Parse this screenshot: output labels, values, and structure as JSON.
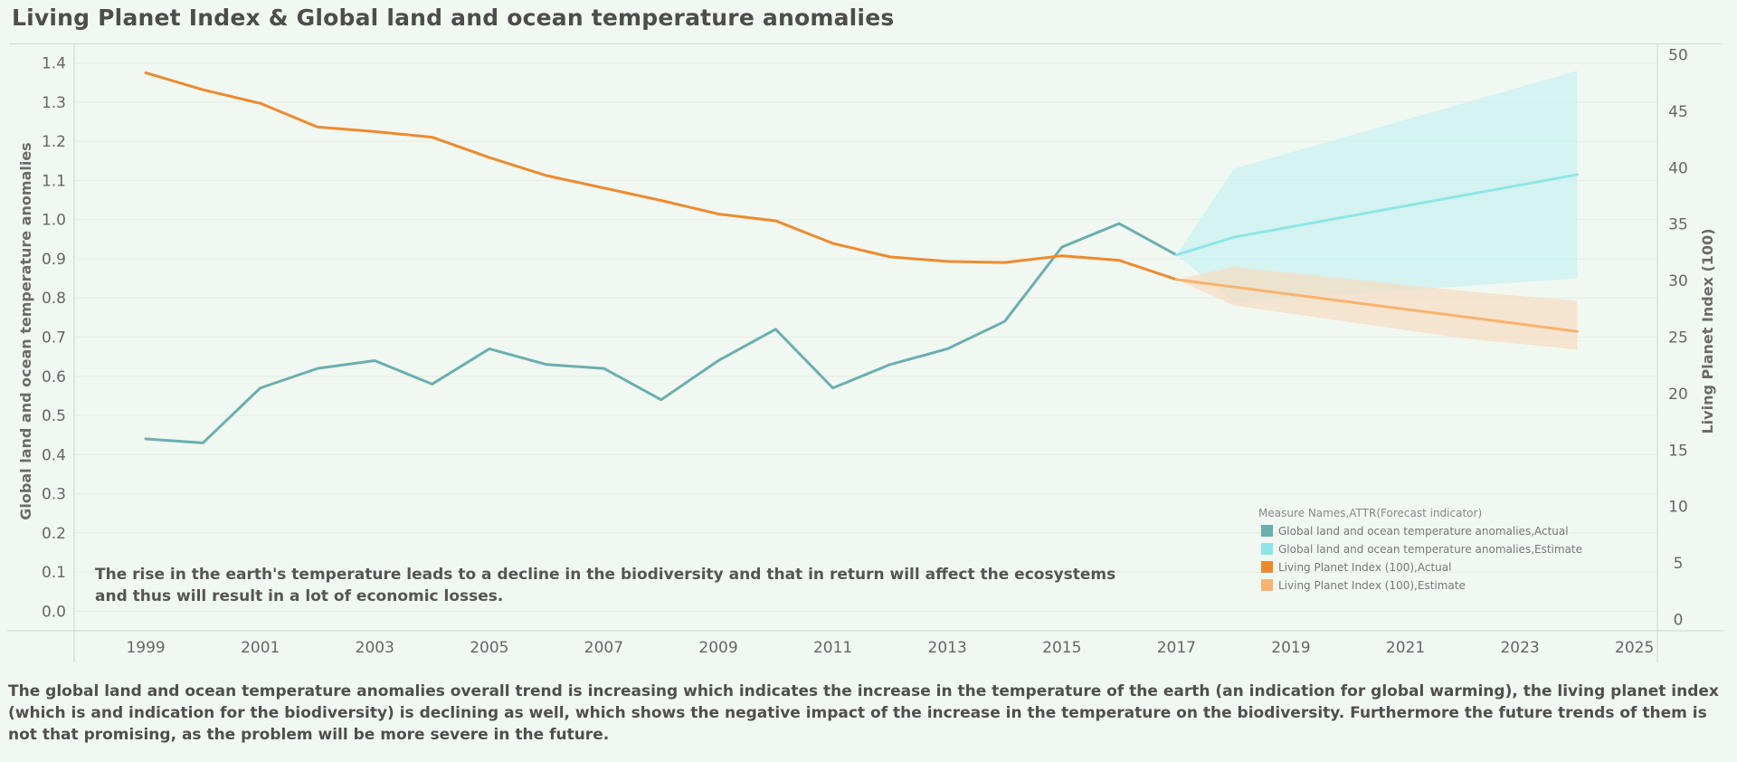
{
  "title": "Living Planet Index & Global land and ocean temperature anomalies",
  "annotation": "The rise in the earth's temperature leads to a decline in the biodiversity and that in return will affect the ecosystems and thus will result in a lot of economic losses.",
  "caption": "The global land and ocean temperature anomalies overall trend is increasing which indicates the increase in the temperature of the earth (an indication for global warming), the living planet index (which is and indication for the biodiversity) is declining as well, which shows the negative impact of the increase in the temperature on the biodiversity. Furthermore the future trends of them is not that promising, as the problem will be more severe in the future.",
  "chart_data": {
    "type": "line",
    "title": "Living Planet Index & Global land and ocean temperature anomalies",
    "xlabel": "",
    "ylabel": "Global land and ocean temperature anomalies",
    "y2label": "Living Planet Index (100)",
    "xlim": [
      1997.75,
      2025.4
    ],
    "ylim": [
      -0.05,
      1.45
    ],
    "y2lim": [
      -1,
      51
    ],
    "xticks": [
      1999,
      2001,
      2003,
      2005,
      2007,
      2009,
      2011,
      2013,
      2015,
      2017,
      2019,
      2021,
      2023,
      2025
    ],
    "yticks": [
      0.0,
      0.1,
      0.2,
      0.3,
      0.4,
      0.5,
      0.6,
      0.7,
      0.8,
      0.9,
      1.0,
      1.1,
      1.2,
      1.3,
      1.4
    ],
    "yticklabels": [
      "0.0",
      "0.1",
      "0.2",
      "0.3",
      "0.4",
      "0.5",
      "0.6",
      "0.7",
      "0.8",
      "0.9",
      "1.0",
      "1.1",
      "1.2",
      "1.3",
      "1.4"
    ],
    "y2ticks": [
      0,
      5,
      10,
      15,
      20,
      25,
      30,
      35,
      40,
      45,
      50
    ],
    "grid": true,
    "legend_position": "bottom-right",
    "legend_title": "Measure Names,ATTR(Forecast indicator)",
    "colors": {
      "temp_actual": "#6aafb0",
      "temp_estimate": "#8de6e8",
      "temp_band": "#c9f1f0",
      "lpi_actual": "#ee8a2e",
      "lpi_estimate": "#f8b36e",
      "lpi_band": "#f6dcc0"
    },
    "series": [
      {
        "name": "Global land and ocean temperature anomalies,Actual",
        "axis": "left",
        "color": "#6aafb0",
        "x": [
          1999,
          2000,
          2001,
          2002,
          2003,
          2004,
          2005,
          2006,
          2007,
          2008,
          2009,
          2010,
          2011,
          2012,
          2013,
          2014,
          2015,
          2016,
          2017
        ],
        "y": [
          0.44,
          0.43,
          0.57,
          0.62,
          0.64,
          0.58,
          0.67,
          0.63,
          0.62,
          0.54,
          0.64,
          0.72,
          0.57,
          0.63,
          0.67,
          0.74,
          0.93,
          0.99,
          0.91
        ]
      },
      {
        "name": "Global land and ocean temperature anomalies,Estimate",
        "axis": "left",
        "color": "#8de6e8",
        "x": [
          2017,
          2018,
          2024
        ],
        "y": [
          0.91,
          0.955,
          1.115
        ],
        "band_x": [
          2017,
          2018,
          2024
        ],
        "band_low": [
          0.91,
          0.79,
          0.85
        ],
        "band_high": [
          0.91,
          1.13,
          1.38
        ]
      },
      {
        "name": "Living Planet Index (100),Actual",
        "axis": "right",
        "color": "#ee8a2e",
        "x": [
          1999,
          2000,
          2001,
          2002,
          2003,
          2004,
          2005,
          2006,
          2007,
          2008,
          2009,
          2010,
          2011,
          2012,
          2013,
          2014,
          2015,
          2016,
          2017
        ],
        "y": [
          48.4,
          46.9,
          45.7,
          43.6,
          43.2,
          42.7,
          40.9,
          39.3,
          38.2,
          37.1,
          35.9,
          35.3,
          33.3,
          32.1,
          31.7,
          31.6,
          32.2,
          31.8,
          30.1
        ]
      },
      {
        "name": "Living Planet Index (100),Estimate",
        "axis": "right",
        "color": "#f8b36e",
        "x": [
          2017,
          2024
        ],
        "y": [
          30.1,
          25.5
        ],
        "band_x": [
          2017,
          2018,
          2022,
          2024
        ],
        "band_low": [
          30.1,
          27.8,
          24.9,
          23.9
        ],
        "band_high": [
          30.1,
          31.2,
          29.1,
          28.2
        ]
      }
    ]
  }
}
